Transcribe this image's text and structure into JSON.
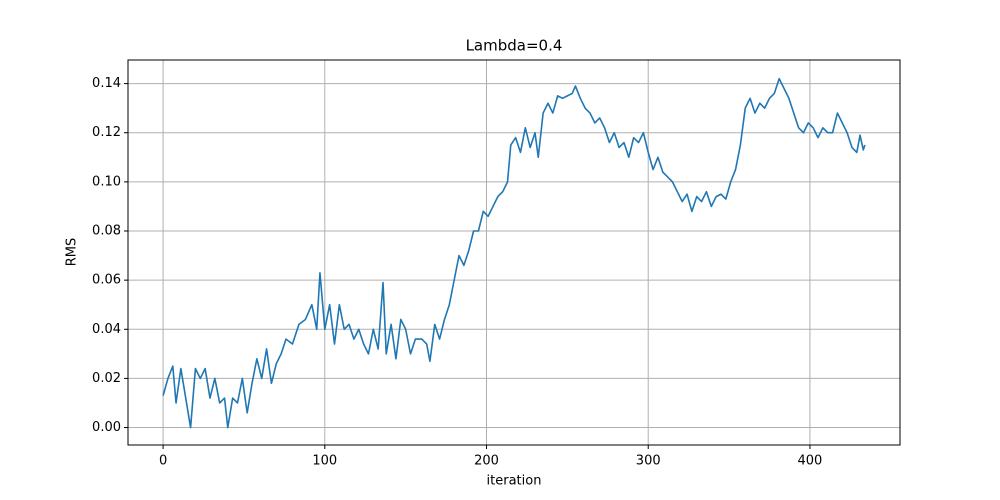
{
  "chart_data": {
    "type": "line",
    "title": "Lambda=0.4",
    "x_label": "iteration",
    "y_label": "RMS",
    "x": [
      0,
      3,
      6,
      8,
      11,
      14,
      17,
      20,
      23,
      26,
      29,
      32,
      35,
      38,
      40,
      43,
      46,
      49,
      52,
      55,
      58,
      61,
      64,
      67,
      70,
      73,
      76,
      80,
      84,
      88,
      92,
      95,
      97,
      100,
      103,
      106,
      109,
      112,
      115,
      118,
      121,
      124,
      127,
      130,
      133,
      136,
      138,
      141,
      144,
      147,
      150,
      153,
      156,
      160,
      163,
      165,
      168,
      171,
      174,
      177,
      180,
      183,
      186,
      189,
      192,
      195,
      198,
      201,
      204,
      207,
      210,
      213,
      215,
      218,
      221,
      224,
      227,
      230,
      232,
      235,
      238,
      241,
      244,
      247,
      250,
      253,
      255,
      258,
      261,
      264,
      267,
      270,
      273,
      276,
      279,
      282,
      285,
      288,
      291,
      294,
      297,
      300,
      303,
      306,
      309,
      312,
      315,
      318,
      321,
      324,
      327,
      330,
      333,
      336,
      339,
      342,
      345,
      348,
      351,
      354,
      357,
      360,
      363,
      366,
      369,
      372,
      375,
      378,
      381,
      384,
      387,
      390,
      393,
      396,
      399,
      402,
      405,
      408,
      411,
      414,
      417,
      420,
      423,
      426,
      429,
      431,
      433,
      434
    ],
    "series": [
      {
        "name": "RMS",
        "color": "#1f77b4",
        "values": [
          0.013,
          0.02,
          0.025,
          0.01,
          0.024,
          0.012,
          0.0,
          0.024,
          0.02,
          0.024,
          0.012,
          0.02,
          0.01,
          0.012,
          0.0,
          0.012,
          0.01,
          0.02,
          0.006,
          0.018,
          0.028,
          0.02,
          0.032,
          0.018,
          0.026,
          0.03,
          0.036,
          0.034,
          0.042,
          0.044,
          0.05,
          0.04,
          0.063,
          0.04,
          0.05,
          0.034,
          0.05,
          0.04,
          0.042,
          0.036,
          0.04,
          0.034,
          0.03,
          0.04,
          0.032,
          0.059,
          0.03,
          0.042,
          0.028,
          0.044,
          0.04,
          0.03,
          0.036,
          0.036,
          0.034,
          0.027,
          0.042,
          0.036,
          0.044,
          0.05,
          0.06,
          0.07,
          0.066,
          0.072,
          0.08,
          0.08,
          0.088,
          0.086,
          0.09,
          0.094,
          0.096,
          0.1,
          0.115,
          0.118,
          0.112,
          0.122,
          0.114,
          0.12,
          0.11,
          0.128,
          0.132,
          0.128,
          0.135,
          0.134,
          0.135,
          0.136,
          0.139,
          0.134,
          0.13,
          0.128,
          0.124,
          0.126,
          0.122,
          0.116,
          0.12,
          0.114,
          0.116,
          0.11,
          0.118,
          0.116,
          0.12,
          0.112,
          0.105,
          0.11,
          0.104,
          0.102,
          0.1,
          0.096,
          0.092,
          0.095,
          0.088,
          0.094,
          0.092,
          0.096,
          0.09,
          0.094,
          0.095,
          0.093,
          0.1,
          0.105,
          0.115,
          0.13,
          0.134,
          0.128,
          0.132,
          0.13,
          0.134,
          0.136,
          0.142,
          0.138,
          0.134,
          0.128,
          0.122,
          0.12,
          0.124,
          0.122,
          0.118,
          0.122,
          0.12,
          0.12,
          0.128,
          0.124,
          0.12,
          0.114,
          0.112,
          0.119,
          0.113,
          0.115
        ]
      }
    ],
    "xlim": [
      -21.7,
      455.7
    ],
    "ylim": [
      -0.0071,
      0.1496
    ],
    "xticks": [
      0,
      100,
      200,
      300,
      400
    ],
    "yticks": [
      {
        "value": 0,
        "label": "0.00"
      },
      0.02,
      0.04,
      0.06,
      0.08,
      {
        "value": 0.1,
        "label": "0.10"
      },
      0.12,
      0.14
    ],
    "grid": true
  }
}
